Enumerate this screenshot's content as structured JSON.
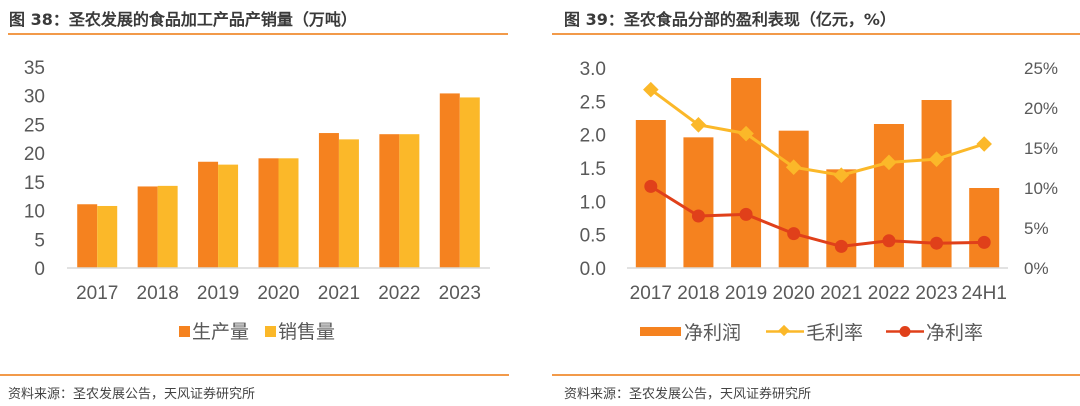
{
  "left": {
    "title": "图 38：圣农发展的食品加工产品产销量（万吨）",
    "source": "资料来源：圣农发展公告，天风证券研究所"
  },
  "right": {
    "title": "图 39：圣农食品分部的盈利表现（亿元，%）",
    "source": "资料来源：圣农发展公告，天风证券研究所"
  },
  "colors": {
    "rule": "#f29a4a",
    "production": "#f5821f",
    "sales": "#fbb829",
    "net_profit": "#f5821f",
    "gross_margin": "#fbb829",
    "net_margin": "#e0401a",
    "axis": "#d9d9d9"
  },
  "chart_data": [
    {
      "type": "bar",
      "title": "图 38：圣农发展的食品加工产品产销量（万吨）",
      "xlabel": "",
      "ylabel": "",
      "categories": [
        "2017",
        "2018",
        "2019",
        "2020",
        "2021",
        "2022",
        "2023"
      ],
      "yticks": [
        "0",
        "5",
        "10",
        "15",
        "20",
        "25",
        "30",
        "35"
      ],
      "ylim": [
        0,
        35
      ],
      "grid": false,
      "legend_position": "bottom",
      "series": [
        {
          "name": "生产量",
          "values": [
            11.1,
            14.2,
            18.5,
            19.1,
            23.5,
            23.3,
            30.4
          ]
        },
        {
          "name": "销售量",
          "values": [
            10.8,
            14.3,
            18.0,
            19.1,
            22.4,
            23.3,
            29.7
          ]
        }
      ]
    },
    {
      "type": "bar",
      "title": "图 39：圣农食品分部的盈利表现（亿元，%）",
      "xlabel": "",
      "categories": [
        "2017",
        "2018",
        "2019",
        "2020",
        "2021",
        "2022",
        "2023",
        "24H1"
      ],
      "yticks_left": [
        "0.0",
        "0.5",
        "1.0",
        "1.5",
        "2.0",
        "2.5",
        "3.0"
      ],
      "yticks_right": [
        "0%",
        "5%",
        "10%",
        "15%",
        "20%",
        "25%"
      ],
      "ylim_left": [
        0,
        3.0
      ],
      "ylim_right": [
        0,
        25
      ],
      "grid": false,
      "legend_position": "bottom",
      "series": [
        {
          "name": "净利润",
          "type": "bar",
          "axis": "left",
          "values": [
            2.22,
            1.96,
            2.85,
            2.06,
            1.48,
            2.16,
            2.52,
            1.2
          ]
        },
        {
          "name": "毛利率",
          "type": "line",
          "axis": "right",
          "marker": "diamond",
          "values": [
            22.3,
            17.9,
            16.8,
            12.6,
            11.6,
            13.2,
            13.6,
            15.5
          ]
        },
        {
          "name": "净利率",
          "type": "line",
          "axis": "right",
          "marker": "circle",
          "values": [
            10.2,
            6.5,
            6.7,
            4.3,
            2.7,
            3.4,
            3.1,
            3.2
          ]
        }
      ]
    }
  ]
}
